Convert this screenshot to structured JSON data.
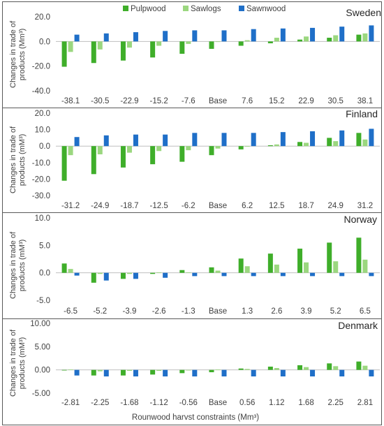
{
  "colors": {
    "Pulpwood": "#3fae2a",
    "Sawlogs": "#9bd77f",
    "Sawnwood": "#1f6fc8",
    "grid": "#bfbfbf",
    "border": "#595959"
  },
  "legend": [
    "Pulpwood",
    "Sawlogs",
    "Sawnwood"
  ],
  "xlabel": "Rounwood harvst constraints (Mm³)",
  "chart_data": [
    {
      "type": "bar",
      "title": "Sweden",
      "ylabel": "Changes in trade of products (Mm³)",
      "ylim": [
        -40,
        20
      ],
      "yticks": [
        20,
        0,
        -20,
        -40
      ],
      "ytick_labels": [
        "20.0",
        "0.0",
        "-20.0",
        "-40.0"
      ],
      "categories": [
        "-38.1",
        "-30.5",
        "-22.9",
        "-15.2",
        "-7.6",
        "Base",
        "7.6",
        "15.2",
        "22.9",
        "30.5",
        "38.1"
      ],
      "series": [
        {
          "name": "Pulpwood",
          "values": [
            -20.5,
            -17.5,
            -15.5,
            -13,
            -10,
            -6,
            -3.5,
            -1.5,
            1.5,
            3,
            5.5
          ]
        },
        {
          "name": "Sawlogs",
          "values": [
            -8.5,
            -6.5,
            -5,
            -3.5,
            -2,
            0,
            1,
            3,
            4,
            5,
            6.5
          ]
        },
        {
          "name": "Sawnwood",
          "values": [
            5.5,
            6.5,
            7.5,
            8.5,
            9,
            9,
            10,
            10.5,
            11,
            12,
            13
          ]
        }
      ]
    },
    {
      "type": "bar",
      "title": "Finland",
      "ylabel": "Changes in trade of products (mM³)",
      "ylim": [
        -30,
        20
      ],
      "yticks": [
        20,
        10,
        0,
        -10,
        -20,
        -30
      ],
      "ytick_labels": [
        "20.0",
        "10.0",
        "0.0",
        "-10.0",
        "-20.0",
        "-30.0"
      ],
      "categories": [
        "-31.2",
        "-24.9",
        "-18.7",
        "-12.5",
        "-6.2",
        "Base",
        "6.2",
        "12.5",
        "18.7",
        "24.9",
        "31.2"
      ],
      "series": [
        {
          "name": "Pulpwood",
          "values": [
            -21,
            -17,
            -13,
            -11,
            -9.5,
            -5.5,
            -2,
            0.5,
            2.5,
            5,
            8
          ]
        },
        {
          "name": "Sawlogs",
          "values": [
            -5.5,
            -5,
            -4,
            -3,
            -2.5,
            -1.5,
            0,
            1,
            2,
            3,
            4
          ]
        },
        {
          "name": "Sawnwood",
          "values": [
            5.5,
            6.5,
            7,
            7,
            8,
            8,
            8,
            8.5,
            9,
            9.5,
            10.5
          ]
        }
      ]
    },
    {
      "type": "bar",
      "title": "Norway",
      "ylabel": "Changes in trade of products (mM³)",
      "ylim": [
        -5,
        10
      ],
      "yticks": [
        10,
        5,
        0,
        -5
      ],
      "ytick_labels": [
        "10.0",
        "5.0",
        "0.0",
        "-5.0"
      ],
      "categories": [
        "-6.5",
        "-5.2",
        "-3.9",
        "-2.6",
        "-1.3",
        "Base",
        "1.3",
        "2.6",
        "3.9",
        "5.2",
        "6.5"
      ],
      "series": [
        {
          "name": "Pulpwood",
          "values": [
            1.7,
            -1.8,
            -1.1,
            -0.2,
            0.5,
            1.0,
            2.6,
            3.5,
            4.4,
            5.5,
            6.4
          ]
        },
        {
          "name": "Sawlogs",
          "values": [
            0.7,
            -0.2,
            -0.2,
            0.1,
            0.1,
            0.4,
            1.2,
            1.5,
            1.9,
            2.1,
            2.4
          ]
        },
        {
          "name": "Sawnwood",
          "values": [
            -0.5,
            -1.4,
            -1.1,
            -0.9,
            -0.6,
            -0.6,
            -0.6,
            -0.6,
            -0.6,
            -0.6,
            -0.6
          ]
        }
      ]
    },
    {
      "type": "bar",
      "title": "Denmark",
      "ylabel": "Changes in trade of products (mM³)",
      "ylim": [
        -5,
        10
      ],
      "yticks": [
        10,
        5,
        0,
        -5
      ],
      "ytick_labels": [
        "10.00",
        "5.00",
        "0.00",
        "-5.00"
      ],
      "categories": [
        "-2.81",
        "-2.25",
        "-1.68",
        "-1.12",
        "-0.56",
        "Base",
        "0.56",
        "1.12",
        "1.68",
        "2.25",
        "2.81"
      ],
      "series": [
        {
          "name": "Pulpwood",
          "values": [
            -0.1,
            -1.2,
            -1.2,
            -1.0,
            -0.7,
            -0.5,
            0.3,
            0.7,
            1.0,
            1.4,
            1.8
          ]
        },
        {
          "name": "Sawlogs",
          "values": [
            0.1,
            -0.3,
            -0.2,
            -0.2,
            -0.1,
            0.1,
            0.2,
            0.4,
            0.6,
            0.8,
            0.9
          ]
        },
        {
          "name": "Sawnwood",
          "values": [
            -1.2,
            -1.4,
            -1.4,
            -1.4,
            -1.4,
            -1.4,
            -1.4,
            -1.4,
            -1.4,
            -1.4,
            -1.4
          ]
        }
      ]
    }
  ]
}
